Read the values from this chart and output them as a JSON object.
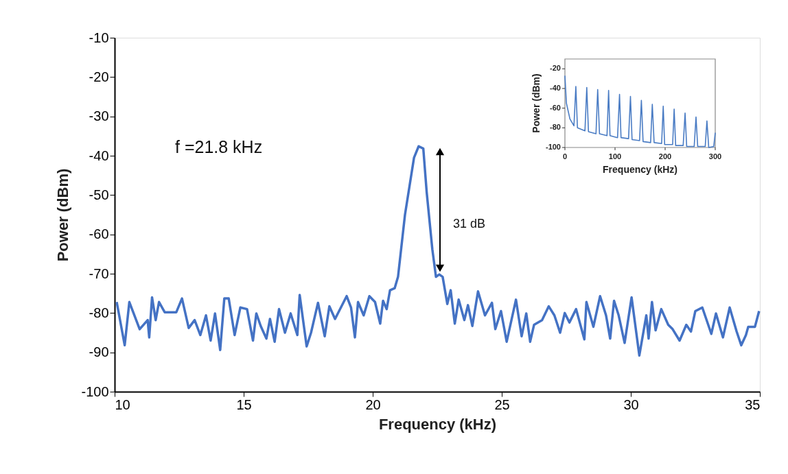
{
  "chart_data": [
    {
      "type": "line",
      "xlabel": "Frequency (kHz)",
      "ylabel": "Power (dBm)",
      "xlim": [
        10,
        35
      ],
      "ylim": [
        -100,
        -10
      ],
      "xticks": [
        10,
        15,
        20,
        25,
        30,
        35
      ],
      "yticks": [
        -100,
        -90,
        -80,
        -70,
        -60,
        -50,
        -40,
        -30,
        -20,
        -10
      ],
      "annotations": [
        "f =21.8 kHz",
        "31 dB"
      ],
      "x": [
        10.08,
        10.39,
        10.57,
        10.97,
        11.28,
        11.34,
        11.45,
        11.59,
        11.72,
        11.94,
        12.39,
        12.61,
        12.87,
        13.1,
        13.32,
        13.54,
        13.72,
        13.89,
        14.09,
        14.25,
        14.42,
        14.65,
        14.87,
        15.13,
        15.36,
        15.49,
        15.66,
        15.88,
        16.02,
        16.2,
        16.37,
        16.6,
        16.82,
        17.08,
        17.17,
        17.44,
        17.61,
        17.88,
        18.14,
        18.32,
        18.54,
        18.99,
        19.16,
        19.31,
        19.43,
        19.65,
        19.87,
        20.09,
        20.29,
        20.4,
        20.54,
        20.67,
        20.85,
        20.98,
        21.25,
        21.6,
        21.78,
        21.96,
        22.09,
        22.31,
        22.45,
        22.58,
        22.71,
        22.89,
        23.02,
        23.18,
        23.33,
        23.55,
        23.69,
        23.86,
        24.08,
        24.35,
        24.62,
        24.75,
        24.97,
        25.19,
        25.55,
        25.77,
        25.95,
        26.1,
        26.25,
        26.56,
        26.82,
        27.04,
        27.26,
        27.44,
        27.62,
        27.88,
        28.2,
        28.28,
        28.55,
        28.81,
        29.04,
        29.2,
        29.35,
        29.53,
        29.76,
        30.03,
        30.33,
        30.6,
        30.69,
        30.82,
        30.96,
        31.18,
        31.45,
        31.62,
        31.89,
        32.15,
        32.33,
        32.5,
        32.77,
        33.12,
        33.3,
        33.57,
        33.83,
        34.1,
        34.28,
        34.46,
        34.55,
        34.81,
        34.97
      ],
      "series": [
        {
          "color": "#4472c4",
          "values": [
            -77.2,
            -88.2,
            -77.2,
            -84.1,
            -81.8,
            -86.2,
            -76.0,
            -81.8,
            -77.2,
            -79.8,
            -79.8,
            -76.3,
            -83.8,
            -81.8,
            -85.6,
            -80.6,
            -87.0,
            -80.1,
            -89.4,
            -76.3,
            -76.3,
            -85.6,
            -78.6,
            -79.0,
            -87.0,
            -80.1,
            -83.3,
            -86.5,
            -81.5,
            -87.3,
            -79.0,
            -85.0,
            -80.1,
            -85.6,
            -75.4,
            -88.5,
            -85.0,
            -77.4,
            -85.9,
            -78.3,
            -81.5,
            -75.7,
            -78.6,
            -86.2,
            -77.2,
            -80.6,
            -75.7,
            -77.2,
            -82.7,
            -76.9,
            -79.0,
            -74.2,
            -73.7,
            -70.8,
            -55.0,
            -40.5,
            -37.6,
            -38.2,
            -49.2,
            -63.8,
            -70.8,
            -70.2,
            -70.8,
            -77.7,
            -74.2,
            -82.7,
            -76.6,
            -81.8,
            -78.0,
            -83.3,
            -74.5,
            -80.6,
            -77.4,
            -84.1,
            -79.5,
            -87.3,
            -76.6,
            -85.9,
            -80.1,
            -87.3,
            -83.0,
            -81.8,
            -78.3,
            -80.6,
            -85.0,
            -80.0,
            -82.4,
            -79.0,
            -86.7,
            -77.2,
            -83.5,
            -75.7,
            -80.6,
            -86.5,
            -76.9,
            -80.6,
            -87.6,
            -76.0,
            -90.8,
            -80.6,
            -86.5,
            -77.2,
            -84.4,
            -79.0,
            -83.0,
            -84.1,
            -87.0,
            -83.0,
            -84.7,
            -79.5,
            -78.6,
            -85.3,
            -80.1,
            -86.2,
            -78.6,
            -84.7,
            -88.2,
            -85.6,
            -83.5,
            -83.5,
            -79.5
          ]
        }
      ]
    },
    {
      "type": "line",
      "xlabel": "Frequency (kHz)",
      "ylabel": "Power (dBm)",
      "xlim": [
        0,
        300
      ],
      "ylim": [
        -100,
        -10
      ],
      "xticks": [
        0,
        100,
        200,
        300
      ],
      "yticks": [
        -100,
        -80,
        -60,
        -40,
        -20
      ],
      "x": [
        0,
        3,
        10,
        18,
        21.8,
        25,
        40,
        43.6,
        47,
        62,
        65.4,
        69,
        84,
        87.2,
        90,
        105,
        109,
        112,
        127,
        130.8,
        134,
        149,
        152.6,
        156,
        171,
        174.4,
        178,
        193,
        196.2,
        199,
        215,
        218,
        221,
        236,
        239.8,
        243,
        258,
        261.6,
        265,
        280,
        283.4,
        287,
        297,
        300
      ],
      "series": [
        {
          "color": "#4a7cc4",
          "values": [
            -27,
            -55,
            -71,
            -78,
            -38,
            -80,
            -83,
            -39,
            -84,
            -86,
            -41,
            -86,
            -88,
            -42,
            -88,
            -90,
            -46,
            -90,
            -91,
            -48,
            -92,
            -93,
            -52,
            -94,
            -95,
            -56,
            -95,
            -96,
            -58,
            -97,
            -97,
            -61,
            -98,
            -98,
            -65,
            -99,
            -99,
            -69,
            -99,
            -99,
            -73,
            -100,
            -99,
            -85
          ]
        }
      ]
    }
  ]
}
